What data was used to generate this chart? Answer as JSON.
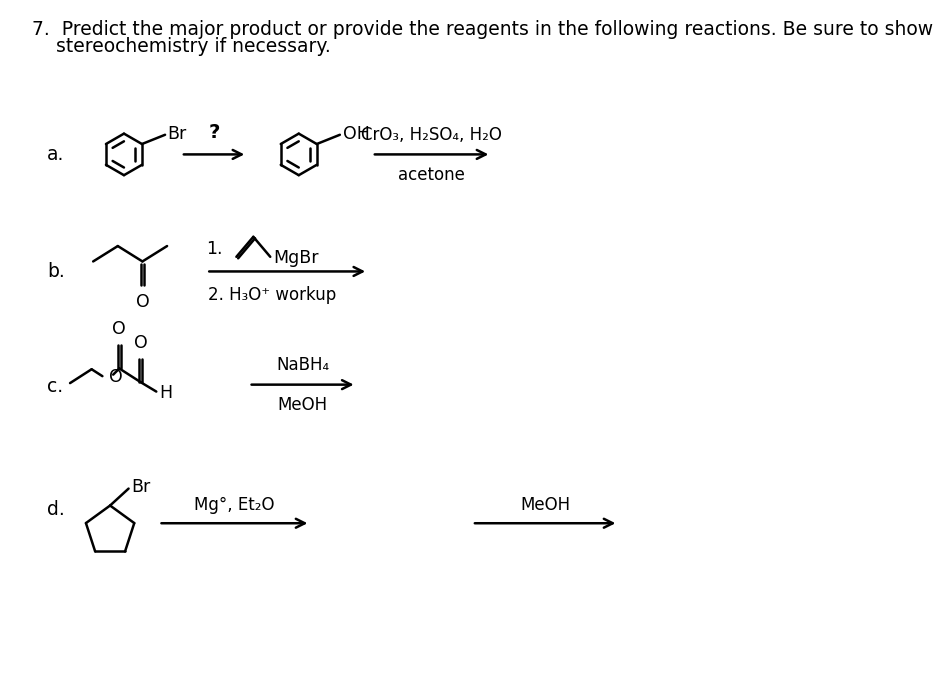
{
  "title_line1": "7.  Predict the major product or provide the reagents in the following reactions. Be sure to show",
  "title_line2": "    stereochemistry if necessary.",
  "bg_color": "#ffffff",
  "text_color": "#000000",
  "label_a": "a.",
  "label_b": "b.",
  "label_c": "c.",
  "label_d": "d.",
  "rxn_a_q": "?",
  "rxn_a_reagent1": "CrO₃, H₂SO₄, H₂O",
  "rxn_a_reagent2": "acetone",
  "rxn_b_step1_num": "1.",
  "rxn_b_step1_reagent": "MgBr",
  "rxn_b_step2": "2. H₃O⁺ workup",
  "rxn_c_step1": "NaBH₄",
  "rxn_c_step2": "MeOH",
  "rxn_d_step1": "Mg°, Et₂O",
  "rxn_d_step2": "MeOH",
  "lw": 1.8,
  "fs_title": 13.5,
  "fs_label": 13.5,
  "fs_text": 12.5,
  "fs_reagent": 12,
  "benzene_r": 27
}
